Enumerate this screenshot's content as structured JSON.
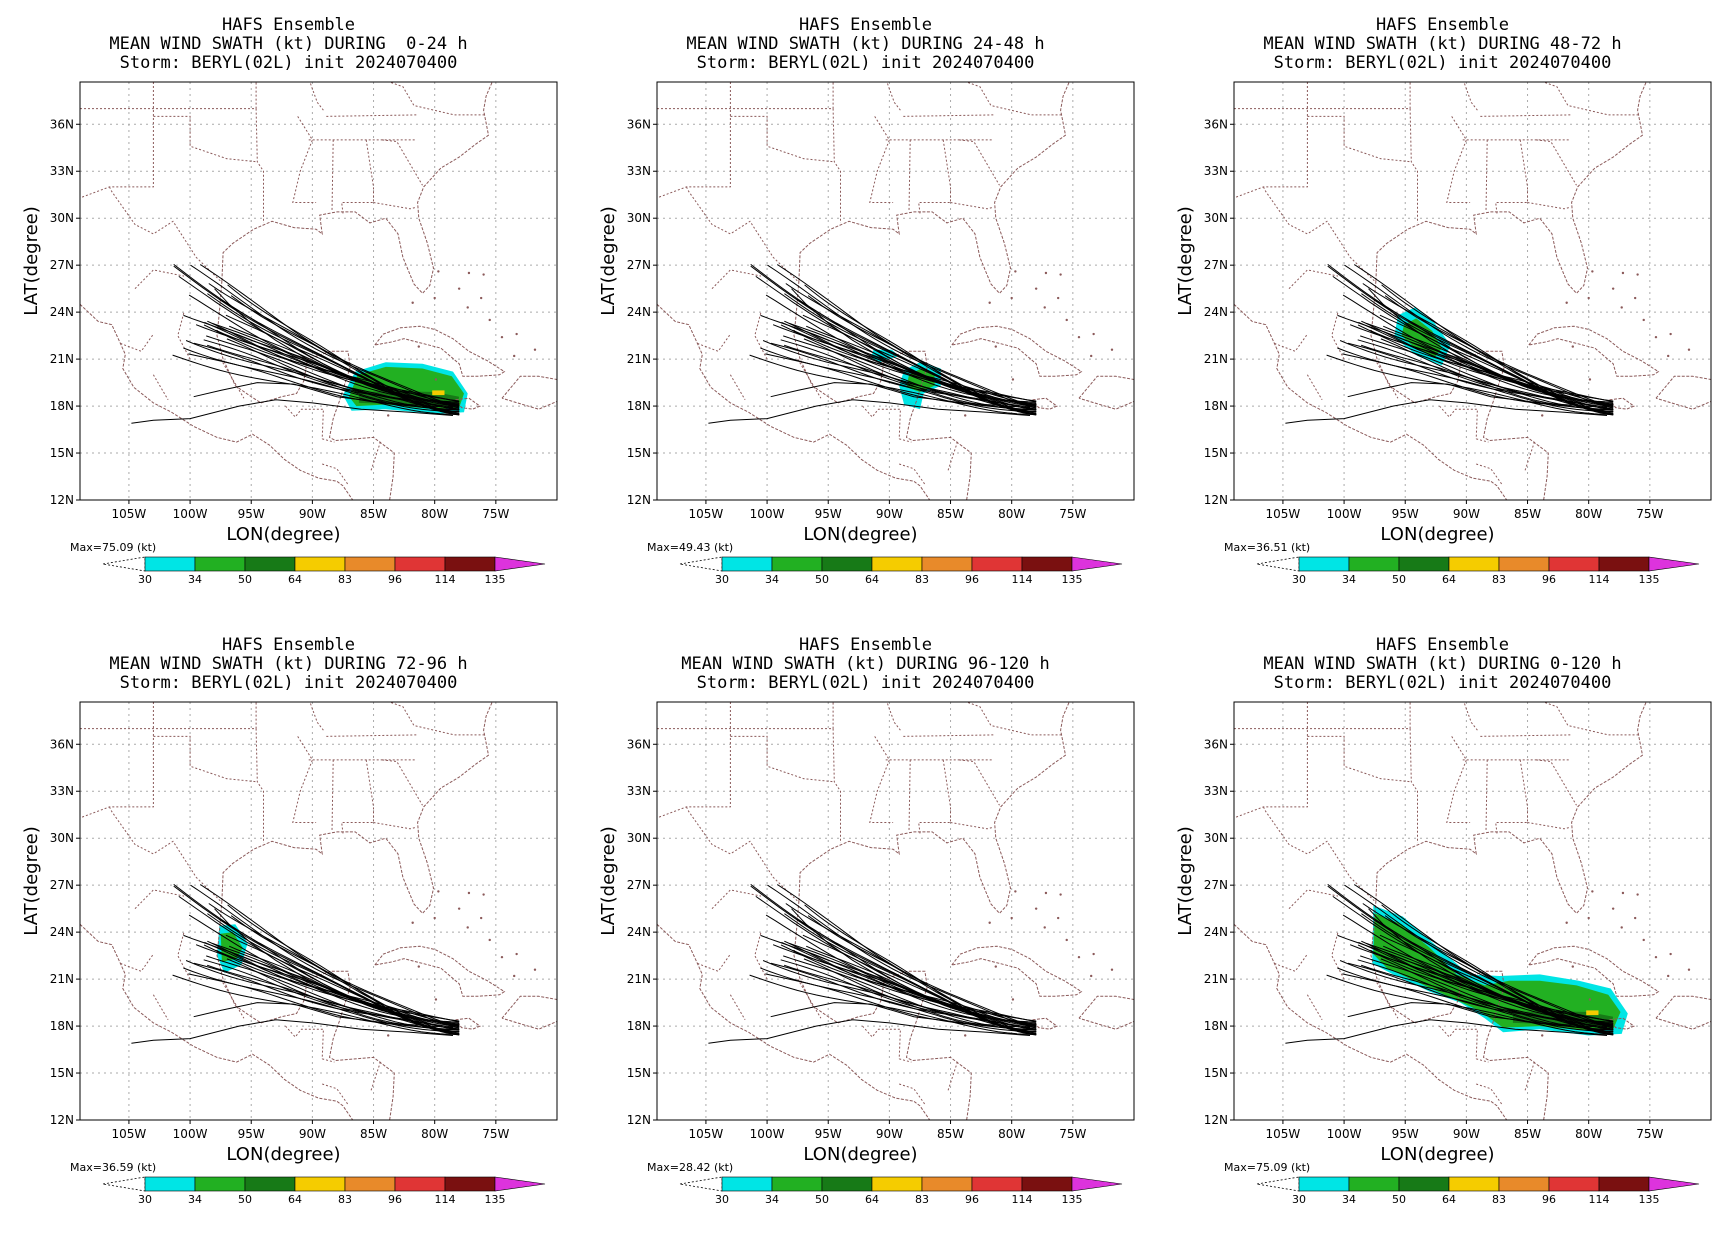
{
  "figure": {
    "colorbar": {
      "levels": [
        "30",
        "34",
        "50",
        "64",
        "83",
        "96",
        "114",
        "135"
      ],
      "colors": [
        "#00e5e5",
        "#22b022",
        "#177a17",
        "#f5cc00",
        "#e88a2a",
        "#e03535",
        "#7a1010"
      ],
      "overflow_color": "#dd33dd"
    },
    "track_color": "#000000",
    "map_color": "#8b5a5a",
    "grid_color": "#aaaaaa"
  },
  "chart_data": [
    {
      "type": "heatmap",
      "title": [
        "HAFS Ensemble",
        "MEAN WIND SWATH (kt) DURING  0-24 h",
        "Storm: BERYL(02L) init 2024070400"
      ],
      "xlabel": "LON(degree)",
      "ylabel": "LAT(degree)",
      "xlim": [
        -109,
        -70
      ],
      "ylim": [
        12,
        38.7
      ],
      "xticks": [
        "105W",
        "100W",
        "95W",
        "90W",
        "85W",
        "80W",
        "75W"
      ],
      "yticks": [
        "12N",
        "15N",
        "18N",
        "21N",
        "24N",
        "27N",
        "30N",
        "33N",
        "36N"
      ],
      "max_label": "Max=75.09 (kt)",
      "swath": [
        {
          "level": "30",
          "polygon": [
            [
              -86.5,
              20.2
            ],
            [
              -84,
              20.8
            ],
            [
              -81,
              20.7
            ],
            [
              -78.5,
              20.2
            ],
            [
              -77.3,
              18.8
            ],
            [
              -77.6,
              17.6
            ],
            [
              -80,
              17.5
            ],
            [
              -84,
              17.8
            ],
            [
              -86.8,
              17.7
            ],
            [
              -87.5,
              18.7
            ]
          ]
        },
        {
          "level": "34",
          "polygon": [
            [
              -86.3,
              20.0
            ],
            [
              -84,
              20.5
            ],
            [
              -81,
              20.4
            ],
            [
              -78.6,
              19.9
            ],
            [
              -77.6,
              18.8
            ],
            [
              -78,
              17.9
            ],
            [
              -80,
              17.8
            ],
            [
              -84,
              18.1
            ],
            [
              -86.4,
              18.0
            ],
            [
              -87,
              18.6
            ]
          ]
        },
        {
          "level": "50",
          "polygon": [
            [
              -86.2,
              18.9
            ],
            [
              -83,
              18.95
            ],
            [
              -80,
              18.9
            ],
            [
              -78,
              18.6
            ],
            [
              -78.2,
              18.0
            ],
            [
              -81,
              18.0
            ],
            [
              -84,
              18.15
            ],
            [
              -86.2,
              18.2
            ]
          ]
        },
        {
          "level": "64",
          "polygon": [
            [
              -80.2,
              19.0
            ],
            [
              -79.2,
              19.0
            ],
            [
              -79.2,
              18.7
            ],
            [
              -80.2,
              18.7
            ]
          ]
        }
      ]
    },
    {
      "type": "heatmap",
      "title": [
        "HAFS Ensemble",
        "MEAN WIND SWATH (kt) DURING 24-48 h",
        "Storm: BERYL(02L) init 2024070400"
      ],
      "xlabel": "LON(degree)",
      "ylabel": "LAT(degree)",
      "xlim": [
        -109,
        -70
      ],
      "ylim": [
        12,
        38.7
      ],
      "xticks": [
        "105W",
        "100W",
        "95W",
        "90W",
        "85W",
        "80W",
        "75W"
      ],
      "yticks": [
        "12N",
        "15N",
        "18N",
        "21N",
        "24N",
        "27N",
        "30N",
        "33N",
        "36N"
      ],
      "max_label": "Max=49.43 (kt)",
      "swath": [
        {
          "level": "30",
          "polygon": [
            [
              -91.3,
              21.6
            ],
            [
              -89.8,
              21.6
            ],
            [
              -89.2,
              21.2
            ],
            [
              -90.8,
              20.8
            ],
            [
              -91.5,
              21.1
            ]
          ]
        },
        {
          "level": "30",
          "polygon": [
            [
              -88.8,
              20.3
            ],
            [
              -87.5,
              20.8
            ],
            [
              -85.8,
              20.4
            ],
            [
              -85.8,
              19.3
            ],
            [
              -87.2,
              18.8
            ],
            [
              -87.5,
              17.8
            ],
            [
              -88.8,
              18.1
            ],
            [
              -89.2,
              19.3
            ]
          ]
        },
        {
          "level": "34",
          "polygon": [
            [
              -88.4,
              20.0
            ],
            [
              -87.4,
              20.4
            ],
            [
              -86.3,
              20.1
            ],
            [
              -86.3,
              19.3
            ],
            [
              -87.5,
              18.9
            ],
            [
              -88.6,
              19.2
            ]
          ]
        }
      ]
    },
    {
      "type": "heatmap",
      "title": [
        "HAFS Ensemble",
        "MEAN WIND SWATH (kt) DURING 48-72 h",
        "Storm: BERYL(02L) init 2024070400"
      ],
      "xlabel": "LON(degree)",
      "ylabel": "LAT(degree)",
      "xlim": [
        -109,
        -70
      ],
      "ylim": [
        12,
        38.7
      ],
      "xticks": [
        "105W",
        "100W",
        "95W",
        "90W",
        "85W",
        "80W",
        "75W"
      ],
      "yticks": [
        "12N",
        "15N",
        "18N",
        "21N",
        "24N",
        "27N",
        "30N",
        "33N",
        "36N"
      ],
      "max_label": "Max=36.51 (kt)",
      "swath": [
        {
          "level": "30",
          "polygon": [
            [
              -95.6,
              23.8
            ],
            [
              -94.2,
              24.3
            ],
            [
              -92.6,
              23.3
            ],
            [
              -91.3,
              21.9
            ],
            [
              -92,
              20.6
            ],
            [
              -94,
              21.2
            ],
            [
              -95.9,
              22.4
            ]
          ]
        },
        {
          "level": "34",
          "polygon": [
            [
              -95.1,
              23.2
            ],
            [
              -94.1,
              23.6
            ],
            [
              -92.8,
              22.8
            ],
            [
              -92.0,
              21.7
            ],
            [
              -92.6,
              21.1
            ],
            [
              -94.2,
              21.7
            ],
            [
              -95.3,
              22.5
            ]
          ]
        }
      ]
    },
    {
      "type": "heatmap",
      "title": [
        "HAFS Ensemble",
        "MEAN WIND SWATH (kt) DURING 72-96 h",
        "Storm: BERYL(02L) init 2024070400"
      ],
      "xlabel": "LON(degree)",
      "ylabel": "LAT(degree)",
      "xlim": [
        -109,
        -70
      ],
      "ylim": [
        12,
        38.7
      ],
      "xticks": [
        "105W",
        "100W",
        "95W",
        "90W",
        "85W",
        "80W",
        "75W"
      ],
      "yticks": [
        "12N",
        "15N",
        "18N",
        "21N",
        "24N",
        "27N",
        "30N",
        "33N",
        "36N"
      ],
      "max_label": "Max=36.59 (kt)",
      "swath": [
        {
          "level": "30",
          "polygon": [
            [
              -97.6,
              24.4
            ],
            [
              -96.3,
              24.5
            ],
            [
              -95.3,
              23.3
            ],
            [
              -95.8,
              21.9
            ],
            [
              -97.2,
              21.4
            ],
            [
              -97.8,
              22.5
            ]
          ]
        },
        {
          "level": "34",
          "polygon": [
            [
              -97.5,
              23.9
            ],
            [
              -96.5,
              24.0
            ],
            [
              -95.7,
              23.0
            ],
            [
              -96.2,
              22.3
            ],
            [
              -97.4,
              22.1
            ]
          ]
        }
      ]
    },
    {
      "type": "heatmap",
      "title": [
        "HAFS Ensemble",
        "MEAN WIND SWATH (kt) DURING 96-120 h",
        "Storm: BERYL(02L) init 2024070400"
      ],
      "xlabel": "LON(degree)",
      "ylabel": "LAT(degree)",
      "xlim": [
        -109,
        -70
      ],
      "ylim": [
        12,
        38.7
      ],
      "xticks": [
        "105W",
        "100W",
        "95W",
        "90W",
        "85W",
        "80W",
        "75W"
      ],
      "yticks": [
        "12N",
        "15N",
        "18N",
        "21N",
        "24N",
        "27N",
        "30N",
        "33N",
        "36N"
      ],
      "max_label": "Max=28.42 (kt)",
      "swath": []
    },
    {
      "type": "heatmap",
      "title": [
        "HAFS Ensemble",
        "MEAN WIND SWATH (kt) DURING 0-120 h",
        "Storm: BERYL(02L) init 2024070400"
      ],
      "xlabel": "LON(degree)",
      "ylabel": "LAT(degree)",
      "xlim": [
        -109,
        -70
      ],
      "ylim": [
        12,
        38.7
      ],
      "xticks": [
        "105W",
        "100W",
        "95W",
        "90W",
        "85W",
        "80W",
        "75W"
      ],
      "yticks": [
        "12N",
        "15N",
        "18N",
        "21N",
        "24N",
        "27N",
        "30N",
        "33N",
        "36N"
      ],
      "max_label": "Max=75.09 (kt)",
      "swath": [
        {
          "level": "30",
          "polygon": [
            [
              -97.6,
              25.7
            ],
            [
              -95.2,
              25.0
            ],
            [
              -93,
              23.5
            ],
            [
              -89.8,
              21.3
            ],
            [
              -87.3,
              21.2
            ],
            [
              -84,
              21.3
            ],
            [
              -80.8,
              20.9
            ],
            [
              -78.2,
              20.4
            ],
            [
              -76.8,
              18.8
            ],
            [
              -77.3,
              17.5
            ],
            [
              -80,
              17.4
            ],
            [
              -84,
              17.8
            ],
            [
              -87,
              17.6
            ],
            [
              -88.5,
              18.5
            ],
            [
              -90.5,
              19.5
            ],
            [
              -93,
              20.2
            ],
            [
              -96,
              21.3
            ],
            [
              -97.7,
              22.0
            ]
          ]
        },
        {
          "level": "34",
          "polygon": [
            [
              -97.5,
              25.2
            ],
            [
              -95.3,
              24.5
            ],
            [
              -93,
              23.0
            ],
            [
              -90.8,
              21.3
            ],
            [
              -88.5,
              20.6
            ],
            [
              -86.5,
              20.9
            ],
            [
              -84,
              20.9
            ],
            [
              -81,
              20.6
            ],
            [
              -78.4,
              20.0
            ],
            [
              -77.4,
              18.9
            ],
            [
              -78,
              17.8
            ],
            [
              -80,
              17.7
            ],
            [
              -84,
              18.0
            ],
            [
              -87,
              17.9
            ],
            [
              -89,
              19.0
            ],
            [
              -91.5,
              19.9
            ],
            [
              -94,
              20.8
            ],
            [
              -96.5,
              21.7
            ],
            [
              -97.6,
              22.6
            ]
          ]
        },
        {
          "level": "50",
          "polygon": [
            [
              -86.2,
              18.9
            ],
            [
              -83,
              18.95
            ],
            [
              -80,
              18.9
            ],
            [
              -78,
              18.6
            ],
            [
              -78.2,
              18.0
            ],
            [
              -81,
              18.0
            ],
            [
              -84,
              18.15
            ],
            [
              -86.2,
              18.2
            ]
          ]
        },
        {
          "level": "64",
          "polygon": [
            [
              -80.2,
              19.0
            ],
            [
              -79.2,
              19.0
            ],
            [
              -79.2,
              18.7
            ],
            [
              -80.2,
              18.7
            ]
          ]
        }
      ]
    }
  ]
}
